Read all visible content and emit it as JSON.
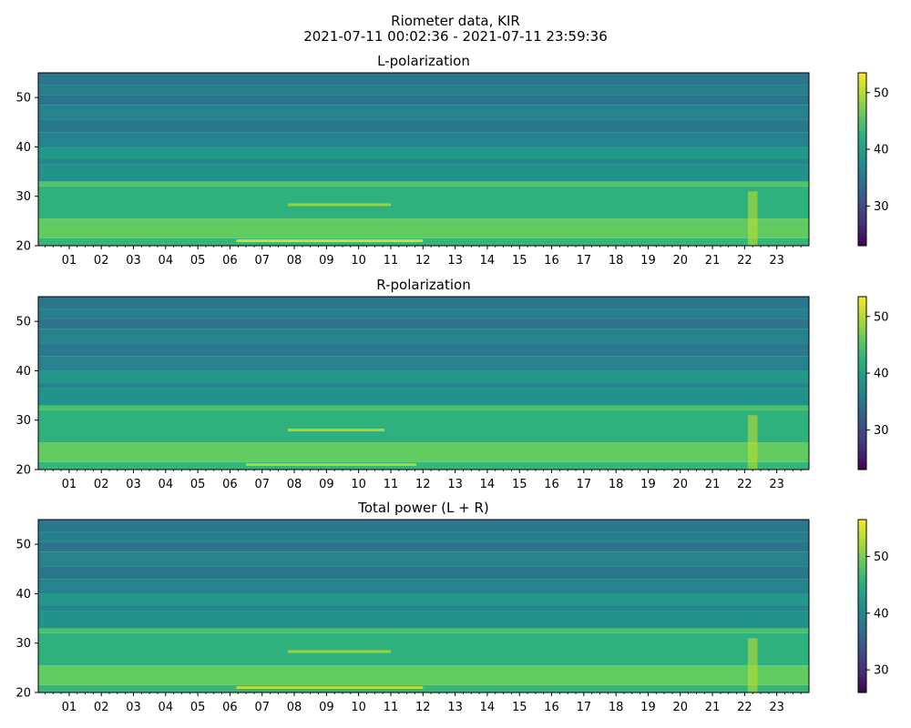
{
  "figure": {
    "title_line1": "Riometer data, KIR",
    "title_line2": "2021-07-11 00:02:36 - 2021-07-11 23:59:36"
  },
  "chart_data": [
    {
      "type": "heatmap",
      "title": "L-polarization",
      "xlabel": "",
      "ylabel": "",
      "x_tick_labels": [
        "01",
        "02",
        "03",
        "04",
        "05",
        "06",
        "07",
        "08",
        "09",
        "10",
        "11",
        "12",
        "13",
        "14",
        "15",
        "16",
        "17",
        "18",
        "19",
        "20",
        "21",
        "22",
        "23"
      ],
      "xlim_hours": [
        0.04,
        24.0
      ],
      "ylim": [
        20,
        55
      ],
      "y_ticks": [
        20,
        30,
        40,
        50
      ],
      "colorbar": {
        "colormap": "viridis",
        "range": [
          23,
          53.5
        ],
        "ticks": [
          30,
          40,
          50
        ]
      },
      "bands": [
        {
          "from": 20,
          "to": 21.5,
          "value": 43
        },
        {
          "from": 21.5,
          "to": 25.5,
          "value": 46
        },
        {
          "from": 25.5,
          "to": 32,
          "value": 42.5
        },
        {
          "from": 32,
          "to": 33,
          "value": 45
        },
        {
          "from": 33,
          "to": 36.5,
          "value": 38.5
        },
        {
          "from": 36.5,
          "to": 37.5,
          "value": 37
        },
        {
          "from": 37.5,
          "to": 40,
          "value": 39
        },
        {
          "from": 40,
          "to": 43,
          "value": 36.5
        },
        {
          "from": 43,
          "to": 45.5,
          "value": 35
        },
        {
          "from": 45.5,
          "to": 48.5,
          "value": 36.5
        },
        {
          "from": 48.5,
          "to": 50.5,
          "value": 34.5
        },
        {
          "from": 50.5,
          "to": 52.5,
          "value": 36
        },
        {
          "from": 52.5,
          "to": 55,
          "value": 35
        }
      ],
      "features": [
        {
          "from_h": 6.2,
          "to_h": 12.0,
          "y": 21.0,
          "value": 52
        },
        {
          "from_h": 7.8,
          "to_h": 11.0,
          "y": 28.3,
          "value": 49
        },
        {
          "from_h": 22.1,
          "to_h": 22.4,
          "y_from": 20,
          "y_to": 31,
          "value": 51
        }
      ]
    },
    {
      "type": "heatmap",
      "title": "R-polarization",
      "xlabel": "",
      "ylabel": "",
      "x_tick_labels": [
        "01",
        "02",
        "03",
        "04",
        "05",
        "06",
        "07",
        "08",
        "09",
        "10",
        "11",
        "12",
        "13",
        "14",
        "15",
        "16",
        "17",
        "18",
        "19",
        "20",
        "21",
        "22",
        "23"
      ],
      "xlim_hours": [
        0.04,
        24.0
      ],
      "ylim": [
        20,
        55
      ],
      "y_ticks": [
        20,
        30,
        40,
        50
      ],
      "colorbar": {
        "colormap": "viridis",
        "range": [
          23,
          53.5
        ],
        "ticks": [
          30,
          40,
          50
        ]
      },
      "bands": [
        {
          "from": 20,
          "to": 21.5,
          "value": 43
        },
        {
          "from": 21.5,
          "to": 25.5,
          "value": 46
        },
        {
          "from": 25.5,
          "to": 32,
          "value": 42.5
        },
        {
          "from": 32,
          "to": 33,
          "value": 44.5
        },
        {
          "from": 33,
          "to": 36.5,
          "value": 38.5
        },
        {
          "from": 36.5,
          "to": 37.5,
          "value": 37
        },
        {
          "from": 37.5,
          "to": 40,
          "value": 39
        },
        {
          "from": 40,
          "to": 43,
          "value": 36.5
        },
        {
          "from": 43,
          "to": 45.5,
          "value": 35
        },
        {
          "from": 45.5,
          "to": 48.5,
          "value": 36.5
        },
        {
          "from": 48.5,
          "to": 50.5,
          "value": 34.5
        },
        {
          "from": 50.5,
          "to": 52.5,
          "value": 36
        },
        {
          "from": 52.5,
          "to": 55,
          "value": 35
        }
      ],
      "features": [
        {
          "from_h": 6.5,
          "to_h": 11.8,
          "y": 21.0,
          "value": 50
        },
        {
          "from_h": 7.8,
          "to_h": 10.8,
          "y": 28.0,
          "value": 50
        },
        {
          "from_h": 22.1,
          "to_h": 22.4,
          "y_from": 20,
          "y_to": 31,
          "value": 51
        }
      ]
    },
    {
      "type": "heatmap",
      "title": "Total power (L + R)",
      "xlabel": "",
      "ylabel": "",
      "x_tick_labels": [
        "01",
        "02",
        "03",
        "04",
        "05",
        "06",
        "07",
        "08",
        "09",
        "10",
        "11",
        "12",
        "13",
        "14",
        "15",
        "16",
        "17",
        "18",
        "19",
        "20",
        "21",
        "22",
        "23"
      ],
      "xlim_hours": [
        0.04,
        24.0
      ],
      "ylim": [
        20,
        55
      ],
      "y_ticks": [
        20,
        30,
        40,
        50
      ],
      "colorbar": {
        "colormap": "viridis",
        "range": [
          26,
          56.5
        ],
        "ticks": [
          30,
          40,
          50
        ]
      },
      "bands": [
        {
          "from": 20,
          "to": 21.5,
          "value": 46
        },
        {
          "from": 21.5,
          "to": 25.5,
          "value": 49
        },
        {
          "from": 25.5,
          "to": 32,
          "value": 45.5
        },
        {
          "from": 32,
          "to": 33,
          "value": 47.5
        },
        {
          "from": 33,
          "to": 36.5,
          "value": 41.5
        },
        {
          "from": 36.5,
          "to": 37.5,
          "value": 40
        },
        {
          "from": 37.5,
          "to": 40,
          "value": 42
        },
        {
          "from": 40,
          "to": 43,
          "value": 39.5
        },
        {
          "from": 43,
          "to": 45.5,
          "value": 38
        },
        {
          "from": 45.5,
          "to": 48.5,
          "value": 39.5
        },
        {
          "from": 48.5,
          "to": 50.5,
          "value": 37.5
        },
        {
          "from": 50.5,
          "to": 52.5,
          "value": 39
        },
        {
          "from": 52.5,
          "to": 55,
          "value": 38
        }
      ],
      "features": [
        {
          "from_h": 6.2,
          "to_h": 12.0,
          "y": 21.0,
          "value": 54
        },
        {
          "from_h": 7.8,
          "to_h": 11.0,
          "y": 28.3,
          "value": 52
        },
        {
          "from_h": 22.1,
          "to_h": 22.4,
          "y_from": 20,
          "y_to": 31,
          "value": 54
        }
      ]
    }
  ]
}
